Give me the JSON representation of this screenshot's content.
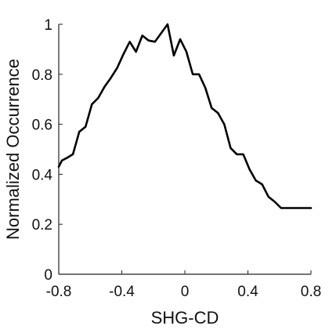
{
  "chart_data": {
    "type": "line",
    "title": "",
    "xlabel": "SHG-CD",
    "ylabel": "Normalized Occurrence",
    "xlim": [
      -0.8,
      0.8
    ],
    "ylim": [
      0,
      1
    ],
    "x_ticks": [
      -0.8,
      -0.4,
      0,
      0.4,
      0.8
    ],
    "x_tick_labels": [
      "-0.8",
      "-0.4",
      "0",
      "0.4",
      "0.8"
    ],
    "y_ticks": [
      0,
      0.2,
      0.4,
      0.6,
      0.8,
      1
    ],
    "y_tick_labels": [
      "0",
      "0.2",
      "0.4",
      "0.6",
      "0.8",
      "1"
    ],
    "grid": false,
    "line_color": "#000000",
    "series": [
      {
        "x": [
          -0.8,
          -0.78,
          -0.75,
          -0.71,
          -0.67,
          -0.63,
          -0.59,
          -0.55,
          -0.51,
          -0.47,
          -0.43,
          -0.39,
          -0.35,
          -0.31,
          -0.27,
          -0.23,
          -0.19,
          -0.15,
          -0.11,
          -0.07,
          -0.03,
          0.01,
          0.05,
          0.09,
          0.13,
          0.17,
          0.21,
          0.25,
          0.29,
          0.33,
          0.37,
          0.41,
          0.45,
          0.49,
          0.53,
          0.57,
          0.61,
          0.65,
          0.69,
          0.73,
          0.77,
          0.8
        ],
        "y": [
          0.43,
          0.455,
          0.465,
          0.48,
          0.57,
          0.59,
          0.68,
          0.705,
          0.75,
          0.785,
          0.825,
          0.88,
          0.93,
          0.89,
          0.955,
          0.935,
          0.93,
          0.965,
          1.0,
          0.875,
          0.94,
          0.89,
          0.8,
          0.8,
          0.745,
          0.665,
          0.645,
          0.6,
          0.505,
          0.48,
          0.48,
          0.42,
          0.375,
          0.36,
          0.31,
          0.29,
          0.265,
          0.265,
          0.265,
          0.265,
          0.265,
          0.265
        ]
      }
    ]
  }
}
